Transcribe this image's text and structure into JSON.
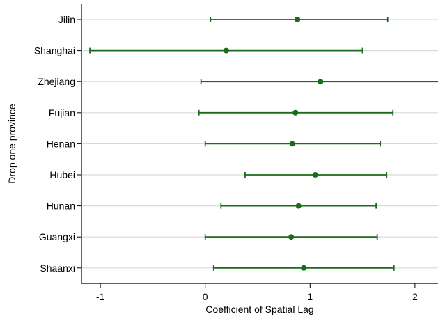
{
  "chart_data": {
    "type": "scatter",
    "subtype": "coefficient-plot-with-confidence-intervals",
    "xlabel": "Coefficient of Spatial Lag",
    "ylabel": "Drop one province",
    "xlim": [
      -1.18,
      2.22
    ],
    "xticks": [
      -1,
      0,
      1,
      2
    ],
    "grid": true,
    "grid_axis": "y",
    "legend": "none",
    "colors": {
      "marker": "#1a6b1a",
      "interval": "#1a6b1a",
      "grid": "#d9d9d9",
      "axis": "#000000"
    },
    "categories": [
      "Jilin",
      "Shanghai",
      "Zhejiang",
      "Fujian",
      "Henan",
      "Hubei",
      "Hunan",
      "Guangxi",
      "Shaanxi"
    ],
    "points": [
      {
        "label": "Jilin",
        "estimate": 0.88,
        "lower": 0.05,
        "upper": 1.74
      },
      {
        "label": "Shanghai",
        "estimate": 0.2,
        "lower": -1.1,
        "upper": 1.5
      },
      {
        "label": "Zhejiang",
        "estimate": 1.1,
        "lower": -0.04,
        "upper": 2.25
      },
      {
        "label": "Fujian",
        "estimate": 0.86,
        "lower": -0.06,
        "upper": 1.79
      },
      {
        "label": "Henan",
        "estimate": 0.83,
        "lower": 0.0,
        "upper": 1.67
      },
      {
        "label": "Hubei",
        "estimate": 1.05,
        "lower": 0.38,
        "upper": 1.73
      },
      {
        "label": "Hunan",
        "estimate": 0.89,
        "lower": 0.15,
        "upper": 1.63
      },
      {
        "label": "Guangxi",
        "estimate": 0.82,
        "lower": 0.0,
        "upper": 1.64
      },
      {
        "label": "Shaanxi",
        "estimate": 0.94,
        "lower": 0.08,
        "upper": 1.8
      }
    ]
  }
}
